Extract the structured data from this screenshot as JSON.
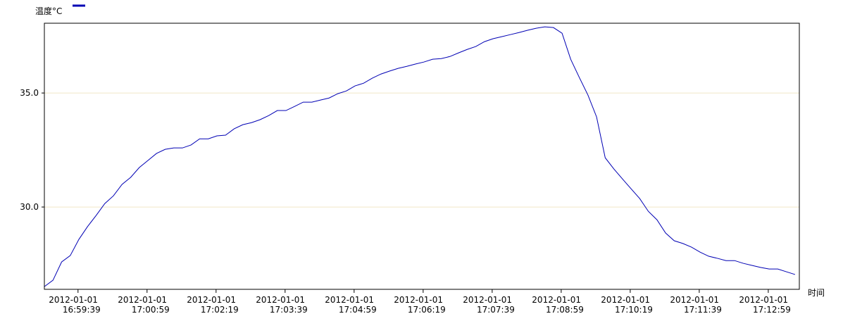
{
  "chart_data": {
    "type": "line",
    "y_label": "温度°C",
    "x_label": "时间",
    "x": [
      "2012-01-01 16:59:00",
      "2012-01-01 16:59:10",
      "2012-01-01 16:59:20",
      "2012-01-01 16:59:30",
      "2012-01-01 16:59:40",
      "2012-01-01 16:59:50",
      "2012-01-01 17:00:00",
      "2012-01-01 17:00:10",
      "2012-01-01 17:00:20",
      "2012-01-01 17:00:30",
      "2012-01-01 17:00:40",
      "2012-01-01 17:00:50",
      "2012-01-01 17:01:00",
      "2012-01-01 17:01:10",
      "2012-01-01 17:01:20",
      "2012-01-01 17:01:30",
      "2012-01-01 17:01:40",
      "2012-01-01 17:01:50",
      "2012-01-01 17:02:00",
      "2012-01-01 17:02:10",
      "2012-01-01 17:02:20",
      "2012-01-01 17:02:30",
      "2012-01-01 17:02:40",
      "2012-01-01 17:02:50",
      "2012-01-01 17:03:00",
      "2012-01-01 17:03:10",
      "2012-01-01 17:03:20",
      "2012-01-01 17:03:30",
      "2012-01-01 17:03:40",
      "2012-01-01 17:03:50",
      "2012-01-01 17:04:00",
      "2012-01-01 17:04:10",
      "2012-01-01 17:04:20",
      "2012-01-01 17:04:30",
      "2012-01-01 17:04:40",
      "2012-01-01 17:04:50",
      "2012-01-01 17:05:00",
      "2012-01-01 17:05:10",
      "2012-01-01 17:05:20",
      "2012-01-01 17:05:30",
      "2012-01-01 17:05:40",
      "2012-01-01 17:05:50",
      "2012-01-01 17:06:00",
      "2012-01-01 17:06:10",
      "2012-01-01 17:06:20",
      "2012-01-01 17:06:30",
      "2012-01-01 17:06:40",
      "2012-01-01 17:06:50",
      "2012-01-01 17:07:00",
      "2012-01-01 17:07:10",
      "2012-01-01 17:07:20",
      "2012-01-01 17:07:30",
      "2012-01-01 17:07:40",
      "2012-01-01 17:07:50",
      "2012-01-01 17:08:00",
      "2012-01-01 17:08:10",
      "2012-01-01 17:08:20",
      "2012-01-01 17:08:30",
      "2012-01-01 17:08:40",
      "2012-01-01 17:08:50",
      "2012-01-01 17:09:00",
      "2012-01-01 17:09:10",
      "2012-01-01 17:09:20",
      "2012-01-01 17:09:30",
      "2012-01-01 17:09:40",
      "2012-01-01 17:09:50",
      "2012-01-01 17:10:00",
      "2012-01-01 17:10:10",
      "2012-01-01 17:10:20",
      "2012-01-01 17:10:30",
      "2012-01-01 17:10:40",
      "2012-01-01 17:10:50",
      "2012-01-01 17:11:00",
      "2012-01-01 17:11:10",
      "2012-01-01 17:11:20",
      "2012-01-01 17:11:30",
      "2012-01-01 17:11:40",
      "2012-01-01 17:11:50",
      "2012-01-01 17:12:00",
      "2012-01-01 17:12:10",
      "2012-01-01 17:12:20",
      "2012-01-01 17:12:30",
      "2012-01-01 17:12:40",
      "2012-01-01 17:12:50",
      "2012-01-01 17:13:00",
      "2012-01-01 17:13:10",
      "2012-01-01 17:13:20",
      "2012-01-01 17:13:30"
    ],
    "series": [
      {
        "color": "#0000b4",
        "values": [
          26.51,
          26.79,
          27.59,
          27.87,
          28.58,
          29.14,
          29.63,
          30.15,
          30.49,
          30.99,
          31.3,
          31.73,
          32.04,
          32.35,
          32.53,
          32.59,
          32.59,
          32.72,
          32.99,
          32.99,
          33.12,
          33.15,
          33.43,
          33.61,
          33.7,
          33.83,
          34.01,
          34.23,
          34.23,
          34.41,
          34.6,
          34.6,
          34.69,
          34.78,
          34.97,
          35.09,
          35.31,
          35.43,
          35.65,
          35.83,
          35.96,
          36.08,
          36.17,
          36.27,
          36.36,
          36.48,
          36.51,
          36.6,
          36.76,
          36.91,
          37.04,
          37.25,
          37.38,
          37.47,
          37.56,
          37.65,
          37.75,
          37.84,
          37.9,
          37.87,
          37.62,
          36.48,
          35.68,
          34.91,
          33.95,
          32.16,
          31.67,
          31.23,
          30.8,
          30.37,
          29.81,
          29.44,
          28.86,
          28.52,
          28.4,
          28.24,
          28.02,
          27.84,
          27.75,
          27.65,
          27.65,
          27.53,
          27.44,
          27.35,
          27.28,
          27.28,
          27.16,
          27.04
        ]
      }
    ],
    "xlim": [
      "2012-01-01 16:59:00",
      "2012-01-01 17:13:35"
    ],
    "xticks": [
      "2012-01-01 16:59:39",
      "2012-01-01 17:00:59",
      "2012-01-01 17:02:19",
      "2012-01-01 17:03:39",
      "2012-01-01 17:04:59",
      "2012-01-01 17:06:19",
      "2012-01-01 17:07:39",
      "2012-01-01 17:08:59",
      "2012-01-01 17:10:19",
      "2012-01-01 17:11:39",
      "2012-01-01 17:12:59"
    ],
    "ylim": [
      26.39,
      38.06
    ],
    "yticks": [
      {
        "value": 30,
        "label": "30.0"
      },
      {
        "value": 35,
        "label": "35.0"
      }
    ],
    "grid": true,
    "grid_color": "#f0e6c8"
  }
}
